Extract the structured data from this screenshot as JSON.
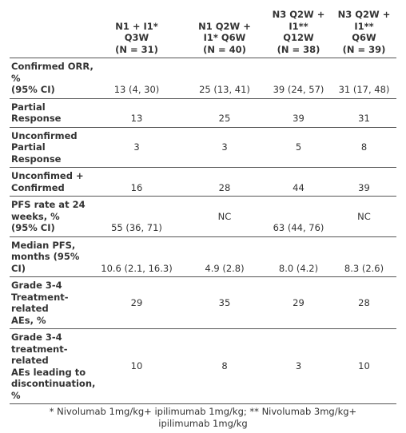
{
  "table": {
    "header": [
      [
        "N1 + I1*",
        "Q3W",
        "(N = 31)"
      ],
      [
        "N1 Q2W +",
        "I1* Q6W",
        "(N = 40)"
      ],
      [
        "N3 Q2W +",
        "I1**",
        "Q12W",
        "(N = 38)"
      ],
      [
        "N3 Q2W +",
        "I1**",
        "Q6W",
        "(N = 39)"
      ]
    ],
    "rows": [
      {
        "label": [
          "Confirmed ORR,",
          "%",
          "(95% CI)"
        ],
        "values": [
          "13 (4, 30)",
          "25 (13, 41)",
          "39 (24, 57)",
          "31 (17, 48)"
        ]
      },
      {
        "label": [
          "Partial",
          "Response"
        ],
        "values": [
          13,
          25,
          39,
          31
        ]
      },
      {
        "label": [
          "Unconfirmed",
          "Partial",
          "Response"
        ],
        "values": [
          3,
          3,
          5,
          8
        ]
      },
      {
        "label": [
          "Unconfimed +",
          "Confirmed"
        ],
        "values": [
          16,
          28,
          44,
          39
        ]
      },
      {
        "label": [
          "PFS rate at 24",
          "weeks, %",
          "(95% CI)"
        ],
        "values": [
          "55 (36, 71)",
          "NC",
          "63 (44, 76)",
          "NC"
        ]
      },
      {
        "label": [
          "Median PFS,",
          "months (95%",
          "CI)"
        ],
        "values": [
          "10.6 (2.1, 16.3)",
          "4.9 (2.8)",
          "8.0 (4.2)",
          "8.3 (2.6)"
        ]
      },
      {
        "label": [
          "Grade 3-4",
          "Treatment-",
          "related",
          "AEs, %"
        ],
        "values": [
          29,
          35,
          29,
          28
        ]
      },
      {
        "label": [
          "Grade 3-4",
          "treatment-",
          "related",
          "AEs leading to",
          "discontinuation,",
          "%"
        ],
        "values": [
          10,
          8,
          3,
          10
        ]
      }
    ],
    "footnote": [
      "* Nivolumab 1mg/kg+ ipilimumab 1mg/kg; ** Nivolumab 3mg/kg+",
      "ipilimumab 1mg/kg"
    ]
  }
}
